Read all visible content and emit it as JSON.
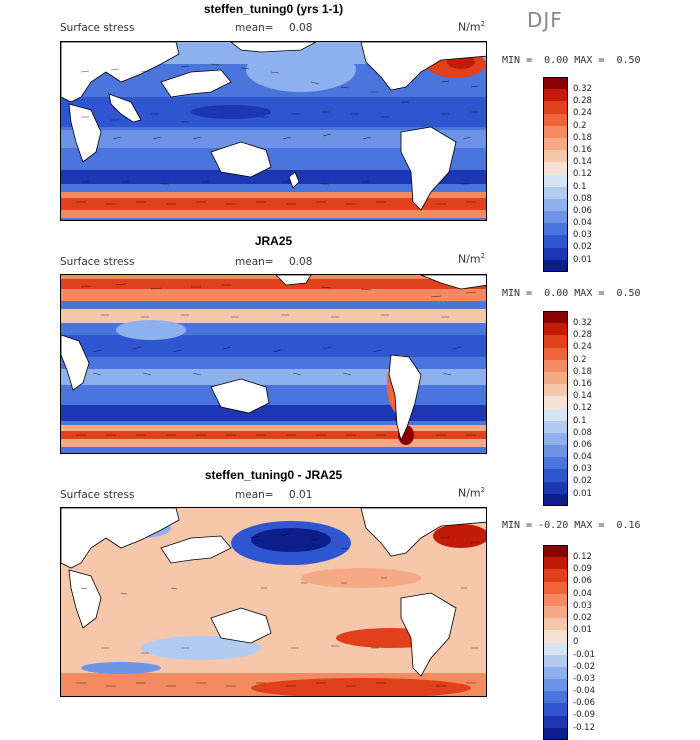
{
  "season": "DJF",
  "units_text": "N/m",
  "units_exp": "2",
  "panels": [
    {
      "title": "steffen_tuning0 (yrs 1-1)",
      "variable": "Surface stress",
      "mean_label": "mean=",
      "mean_value": "0.08",
      "min_label": "MIN =",
      "min_value": "0.00",
      "max_label": "MAX =",
      "max_value": "0.50",
      "colorbar_levels": [
        "0.32",
        "0.28",
        "0.24",
        "0.2",
        "0.18",
        "0.16",
        "0.14",
        "0.12",
        "0.1",
        "0.08",
        "0.06",
        "0.04",
        "0.03",
        "0.02",
        "0.01"
      ],
      "colorbar_colors": [
        "#8b0000",
        "#c41a0a",
        "#e0401c",
        "#f0643a",
        "#f48a60",
        "#f5a985",
        "#f6c7ab",
        "#f4e2d4",
        "#d7e4f6",
        "#b3cbf1",
        "#8eb0ec",
        "#6c93e6",
        "#4c74dd",
        "#2f55d0",
        "#1c36b4",
        "#0c1e8a"
      ]
    },
    {
      "title": "JRA25",
      "variable": "Surface stress",
      "mean_label": "mean=",
      "mean_value": "0.08",
      "min_label": "MIN =",
      "min_value": "0.00",
      "max_label": "MAX =",
      "max_value": "0.50",
      "colorbar_levels": [
        "0.32",
        "0.28",
        "0.24",
        "0.2",
        "0.18",
        "0.16",
        "0.14",
        "0.12",
        "0.1",
        "0.08",
        "0.06",
        "0.04",
        "0.03",
        "0.02",
        "0.01"
      ],
      "colorbar_colors": [
        "#8b0000",
        "#c41a0a",
        "#e0401c",
        "#f0643a",
        "#f48a60",
        "#f5a985",
        "#f6c7ab",
        "#f4e2d4",
        "#d7e4f6",
        "#b3cbf1",
        "#8eb0ec",
        "#6c93e6",
        "#4c74dd",
        "#2f55d0",
        "#1c36b4",
        "#0c1e8a"
      ]
    },
    {
      "title": "steffen_tuning0 - JRA25",
      "variable": "Surface stress",
      "mean_label": "mean=",
      "mean_value": "0.01",
      "min_label": "MIN =",
      "min_value": "-0.20",
      "max_label": "MAX =",
      "max_value": "0.16",
      "colorbar_levels": [
        "0.12",
        "0.09",
        "0.06",
        "0.04",
        "0.03",
        "0.02",
        "0.01",
        "0",
        "-0.01",
        "-0.02",
        "-0.03",
        "-0.04",
        "-0.06",
        "-0.09",
        "-0.12"
      ],
      "colorbar_colors": [
        "#8b0000",
        "#c41a0a",
        "#e0401c",
        "#f0643a",
        "#f48a60",
        "#f5a985",
        "#f6c7ab",
        "#f4e2d4",
        "#d7e4f6",
        "#b3cbf1",
        "#8eb0ec",
        "#6c93e6",
        "#4c74dd",
        "#2f55d0",
        "#1c36b4",
        "#0c1e8a"
      ]
    }
  ]
}
